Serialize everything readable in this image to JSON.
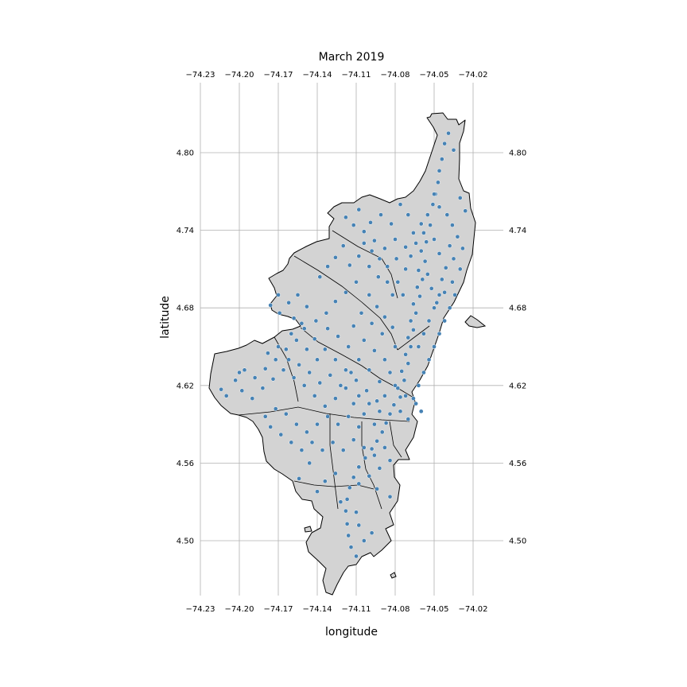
{
  "chart_data": {
    "type": "scatter",
    "title": "March 2019",
    "xlabel": "longitude",
    "ylabel": "latitude",
    "xlim": [
      -74.23,
      -74.0
    ],
    "ylim": [
      4.46,
      4.83
    ],
    "x_ticks": [
      -74.23,
      -74.2,
      -74.17,
      -74.14,
      -74.11,
      -74.08,
      -74.05,
      -74.02
    ],
    "x_tick_labels": [
      "−74.23",
      "−74.20",
      "−74.17",
      "−74.14",
      "−74.11",
      "−74.08",
      "−74.05",
      "−74.02"
    ],
    "y_ticks": [
      4.5,
      4.56,
      4.62,
      4.68,
      4.74,
      4.8
    ],
    "y_tick_labels": [
      "4.50",
      "4.56",
      "4.62",
      "4.68",
      "4.74",
      "4.80"
    ],
    "grid": true,
    "map_fill": "#d3d3d3",
    "map_edge": "#000000",
    "point_color": "#4682b4",
    "points": [
      [
        -74.039,
        4.815
      ],
      [
        -74.042,
        4.807
      ],
      [
        -74.035,
        4.802
      ],
      [
        -74.044,
        4.795
      ],
      [
        -74.046,
        4.786
      ],
      [
        -74.047,
        4.777
      ],
      [
        -74.049,
        4.768
      ],
      [
        -74.051,
        4.76
      ],
      [
        -74.055,
        4.752
      ],
      [
        -74.053,
        4.744
      ],
      [
        -74.058,
        4.738
      ],
      [
        -74.056,
        4.731
      ],
      [
        -74.06,
        4.724
      ],
      [
        -74.057,
        4.716
      ],
      [
        -74.062,
        4.709
      ],
      [
        -74.059,
        4.702
      ],
      [
        -74.063,
        4.696
      ],
      [
        -74.061,
        4.689
      ],
      [
        -74.066,
        4.683
      ],
      [
        -74.064,
        4.676
      ],
      [
        -74.068,
        4.67
      ],
      [
        -74.066,
        4.663
      ],
      [
        -74.07,
        4.657
      ],
      [
        -74.068,
        4.65
      ],
      [
        -74.072,
        4.644
      ],
      [
        -74.07,
        4.637
      ],
      [
        -74.075,
        4.631
      ],
      [
        -74.073,
        4.624
      ],
      [
        -74.078,
        4.618
      ],
      [
        -74.076,
        4.611
      ],
      [
        -74.081,
        4.605
      ],
      [
        -74.084,
        4.598
      ],
      [
        -74.087,
        4.591
      ],
      [
        -74.09,
        4.584
      ],
      [
        -74.094,
        4.577
      ],
      [
        -74.098,
        4.571
      ],
      [
        -74.103,
        4.564
      ],
      [
        -74.108,
        4.557
      ],
      [
        -74.112,
        4.549
      ],
      [
        -74.115,
        4.541
      ],
      [
        -74.117,
        4.532
      ],
      [
        -74.118,
        4.523
      ],
      [
        -74.117,
        4.513
      ],
      [
        -74.116,
        4.504
      ],
      [
        -74.114,
        4.495
      ],
      [
        -74.11,
        4.488
      ],
      [
        -74.104,
        4.5
      ],
      [
        -74.108,
        4.512
      ],
      [
        -74.098,
        4.506
      ],
      [
        -74.076,
        4.76
      ],
      [
        -74.07,
        4.752
      ],
      [
        -74.083,
        4.745
      ],
      [
        -74.091,
        4.752
      ],
      [
        -74.099,
        4.746
      ],
      [
        -74.104,
        4.739
      ],
      [
        -74.096,
        4.732
      ],
      [
        -74.088,
        4.726
      ],
      [
        -74.08,
        4.733
      ],
      [
        -74.072,
        4.727
      ],
      [
        -74.066,
        4.738
      ],
      [
        -74.04,
        4.752
      ],
      [
        -74.036,
        4.744
      ],
      [
        -74.032,
        4.735
      ],
      [
        -74.028,
        4.726
      ],
      [
        -74.035,
        4.718
      ],
      [
        -74.041,
        4.711
      ],
      [
        -74.046,
        4.722
      ],
      [
        -74.05,
        4.733
      ],
      [
        -74.03,
        4.71
      ],
      [
        -74.036,
        4.7
      ],
      [
        -74.042,
        4.692
      ],
      [
        -74.048,
        4.684
      ],
      [
        -74.052,
        4.695
      ],
      [
        -74.055,
        4.706
      ],
      [
        -74.12,
        4.728
      ],
      [
        -74.126,
        4.719
      ],
      [
        -74.132,
        4.712
      ],
      [
        -74.138,
        4.704
      ],
      [
        -74.115,
        4.713
      ],
      [
        -74.108,
        4.72
      ],
      [
        -74.1,
        4.712
      ],
      [
        -74.093,
        4.704
      ],
      [
        -74.086,
        4.712
      ],
      [
        -74.079,
        4.718
      ],
      [
        -74.11,
        4.7
      ],
      [
        -74.118,
        4.692
      ],
      [
        -74.126,
        4.685
      ],
      [
        -74.133,
        4.676
      ],
      [
        -74.141,
        4.67
      ],
      [
        -74.148,
        4.681
      ],
      [
        -74.155,
        4.69
      ],
      [
        -74.162,
        4.684
      ],
      [
        -74.17,
        4.69
      ],
      [
        -74.176,
        4.682
      ],
      [
        -74.169,
        4.676
      ],
      [
        -74.158,
        4.672
      ],
      [
        -74.15,
        4.664
      ],
      [
        -74.142,
        4.656
      ],
      [
        -74.134,
        4.648
      ],
      [
        -74.126,
        4.64
      ],
      [
        -74.118,
        4.632
      ],
      [
        -74.11,
        4.624
      ],
      [
        -74.102,
        4.616
      ],
      [
        -74.094,
        4.608
      ],
      [
        -74.1,
        4.69
      ],
      [
        -74.094,
        4.681
      ],
      [
        -74.088,
        4.673
      ],
      [
        -74.082,
        4.665
      ],
      [
        -74.09,
        4.66
      ],
      [
        -74.098,
        4.668
      ],
      [
        -74.106,
        4.676
      ],
      [
        -74.112,
        4.666
      ],
      [
        -74.104,
        4.655
      ],
      [
        -74.096,
        4.647
      ],
      [
        -74.088,
        4.64
      ],
      [
        -74.08,
        4.65
      ],
      [
        -74.084,
        4.63
      ],
      [
        -74.092,
        4.623
      ],
      [
        -74.1,
        4.632
      ],
      [
        -74.108,
        4.64
      ],
      [
        -74.116,
        4.65
      ],
      [
        -74.124,
        4.658
      ],
      [
        -74.132,
        4.664
      ],
      [
        -74.14,
        4.64
      ],
      [
        -74.148,
        4.648
      ],
      [
        -74.156,
        4.655
      ],
      [
        -74.164,
        4.648
      ],
      [
        -74.172,
        4.64
      ],
      [
        -74.18,
        4.633
      ],
      [
        -74.188,
        4.626
      ],
      [
        -74.196,
        4.632
      ],
      [
        -74.203,
        4.624
      ],
      [
        -74.198,
        4.616
      ],
      [
        -74.19,
        4.61
      ],
      [
        -74.182,
        4.618
      ],
      [
        -74.174,
        4.625
      ],
      [
        -74.166,
        4.632
      ],
      [
        -74.158,
        4.626
      ],
      [
        -74.15,
        4.62
      ],
      [
        -74.142,
        4.612
      ],
      [
        -74.134,
        4.604
      ],
      [
        -74.126,
        4.61
      ],
      [
        -74.118,
        4.618
      ],
      [
        -74.112,
        4.606
      ],
      [
        -74.104,
        4.598
      ],
      [
        -74.096,
        4.59
      ],
      [
        -74.108,
        4.588
      ],
      [
        -74.116,
        4.596
      ],
      [
        -74.124,
        4.59
      ],
      [
        -74.132,
        4.596
      ],
      [
        -74.14,
        4.59
      ],
      [
        -74.148,
        4.584
      ],
      [
        -74.156,
        4.59
      ],
      [
        -74.164,
        4.598
      ],
      [
        -74.172,
        4.602
      ],
      [
        -74.18,
        4.596
      ],
      [
        -74.176,
        4.588
      ],
      [
        -74.168,
        4.582
      ],
      [
        -74.16,
        4.576
      ],
      [
        -74.152,
        4.57
      ],
      [
        -74.144,
        4.576
      ],
      [
        -74.136,
        4.57
      ],
      [
        -74.128,
        4.576
      ],
      [
        -74.12,
        4.57
      ],
      [
        -74.112,
        4.578
      ],
      [
        -74.104,
        4.572
      ],
      [
        -74.096,
        4.566
      ],
      [
        -74.088,
        4.572
      ],
      [
        -74.084,
        4.562
      ],
      [
        -74.092,
        4.556
      ],
      [
        -74.1,
        4.55
      ],
      [
        -74.108,
        4.544
      ],
      [
        -74.126,
        4.552
      ],
      [
        -74.134,
        4.546
      ],
      [
        -74.14,
        4.538
      ],
      [
        -74.146,
        4.56
      ],
      [
        -74.154,
        4.548
      ],
      [
        -74.122,
        4.53
      ],
      [
        -74.11,
        4.522
      ],
      [
        -74.084,
        4.534
      ],
      [
        -74.094,
        4.54
      ],
      [
        -74.21,
        4.612
      ],
      [
        -74.214,
        4.617
      ],
      [
        -74.2,
        4.63
      ],
      [
        -74.06,
        4.6
      ],
      [
        -74.066,
        4.61
      ],
      [
        -74.062,
        4.62
      ],
      [
        -74.058,
        4.63
      ],
      [
        -74.054,
        4.64
      ],
      [
        -74.05,
        4.65
      ],
      [
        -74.046,
        4.66
      ],
      [
        -74.042,
        4.67
      ],
      [
        -74.038,
        4.68
      ],
      [
        -74.034,
        4.69
      ],
      [
        -74.058,
        4.66
      ],
      [
        -74.054,
        4.67
      ],
      [
        -74.05,
        4.68
      ],
      [
        -74.046,
        4.69
      ],
      [
        -74.062,
        4.65
      ],
      [
        -74.074,
        4.69
      ],
      [
        -74.078,
        4.7
      ],
      [
        -74.072,
        4.71
      ],
      [
        -74.068,
        4.72
      ],
      [
        -74.064,
        4.73
      ],
      [
        -74.082,
        4.69
      ],
      [
        -74.086,
        4.7
      ],
      [
        -74.092,
        4.718
      ],
      [
        -74.098,
        4.724
      ],
      [
        -74.104,
        4.73
      ],
      [
        -74.112,
        4.744
      ],
      [
        -74.118,
        4.75
      ],
      [
        -74.108,
        4.756
      ],
      [
        -74.06,
        4.745
      ],
      [
        -74.05,
        4.768
      ],
      [
        -74.046,
        4.758
      ],
      [
        -74.03,
        4.765
      ],
      [
        -74.026,
        4.755
      ],
      [
        -74.038,
        4.728
      ],
      [
        -74.044,
        4.702
      ],
      [
        -74.076,
        4.6
      ],
      [
        -74.07,
        4.594
      ],
      [
        -74.064,
        4.606
      ],
      [
        -74.072,
        4.612
      ],
      [
        -74.08,
        4.62
      ],
      [
        -74.088,
        4.612
      ],
      [
        -74.092,
        4.6
      ],
      [
        -74.1,
        4.606
      ],
      [
        -74.108,
        4.612
      ],
      [
        -74.114,
        4.63
      ],
      [
        -74.122,
        4.62
      ],
      [
        -74.13,
        4.628
      ],
      [
        -74.138,
        4.622
      ],
      [
        -74.146,
        4.63
      ],
      [
        -74.154,
        4.636
      ],
      [
        -74.162,
        4.64
      ],
      [
        -74.17,
        4.65
      ],
      [
        -74.178,
        4.645
      ],
      [
        -74.16,
        4.66
      ],
      [
        -74.152,
        4.668
      ]
    ]
  }
}
